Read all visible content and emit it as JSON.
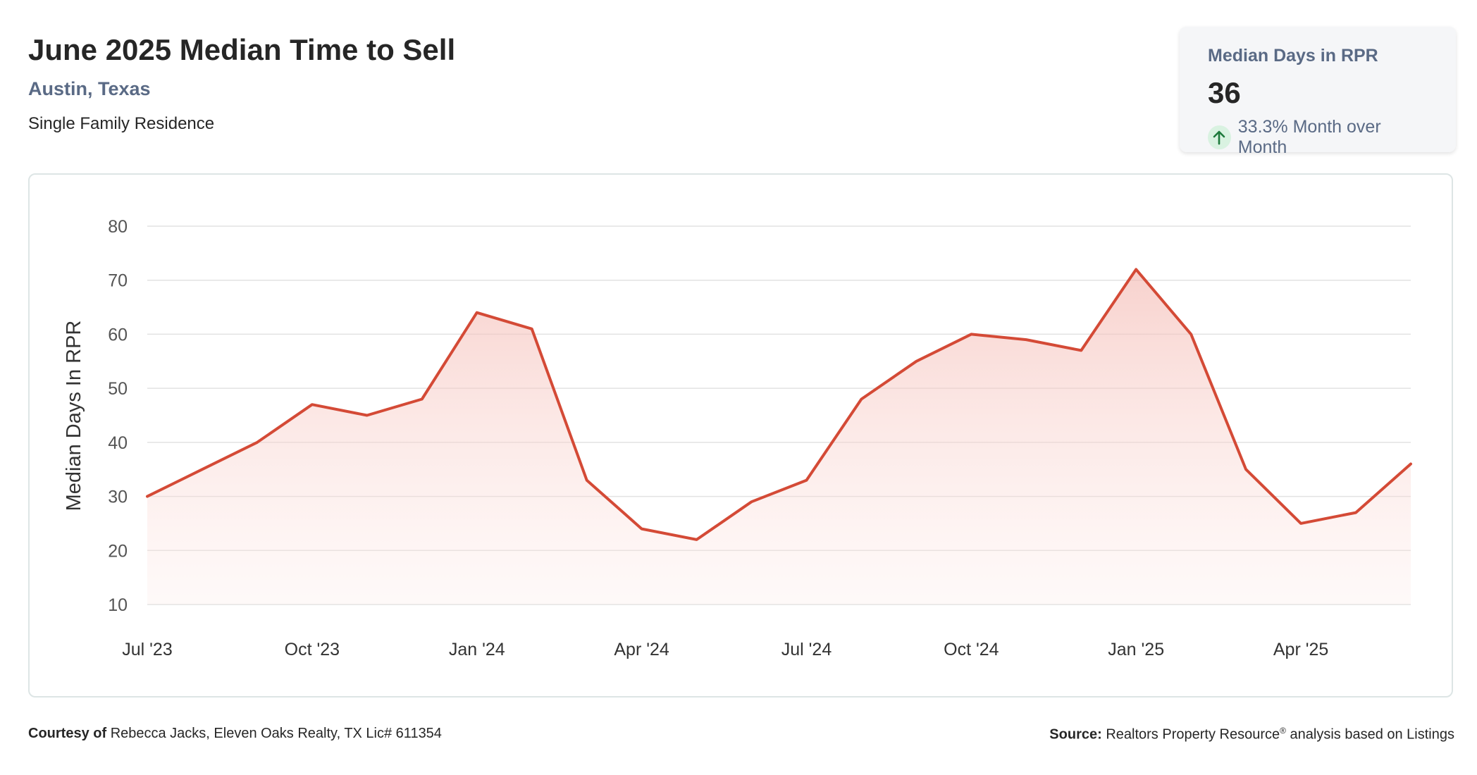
{
  "header": {
    "title": "June 2025 Median Time to Sell",
    "location": "Austin, Texas",
    "property_type": "Single Family Residence"
  },
  "stat_card": {
    "label": "Median Days in RPR",
    "value": "36",
    "change": "33.3% Month over Month",
    "change_icon": "arrow-up-icon",
    "change_color": "#1e7a3c"
  },
  "footer": {
    "courtesy_label": "Courtesy of",
    "courtesy_text": "Rebecca Jacks, Eleven Oaks Realty, TX Lic# 611354",
    "source_label": "Source:",
    "source_text_1": "Realtors Property Resource",
    "source_sup": "®",
    "source_text_2": " analysis based on Listings"
  },
  "colors": {
    "line": "#d44a36",
    "fill": "#f8d6d2",
    "grid": "#e2e2e2"
  },
  "chart_data": {
    "type": "area",
    "title": "June 2025 Median Time to Sell",
    "xlabel": "",
    "ylabel": "Median Days In RPR",
    "ylim": [
      10,
      80
    ],
    "yticks": [
      10,
      20,
      30,
      40,
      50,
      60,
      70,
      80
    ],
    "x": [
      "Jul '23",
      "Aug '23",
      "Sep '23",
      "Oct '23",
      "Nov '23",
      "Dec '23",
      "Jan '24",
      "Feb '24",
      "Mar '24",
      "Apr '24",
      "May '24",
      "Jun '24",
      "Jul '24",
      "Aug '24",
      "Sep '24",
      "Oct '24",
      "Nov '24",
      "Dec '24",
      "Jan '25",
      "Feb '25",
      "Mar '25",
      "Apr '25",
      "May '25",
      "Jun '25"
    ],
    "xtick_labels": [
      "Jul '23",
      "Oct '23",
      "Jan '24",
      "Apr '24",
      "Jul '24",
      "Oct '24",
      "Jan '25",
      "Apr '25"
    ],
    "series": [
      {
        "values": [
          30,
          35,
          40,
          47,
          45,
          48,
          64,
          61,
          33,
          24,
          22,
          29,
          33,
          48,
          55,
          60,
          59,
          57,
          72,
          60,
          35,
          25,
          27,
          36
        ]
      }
    ],
    "grid": true,
    "legend": "none"
  }
}
